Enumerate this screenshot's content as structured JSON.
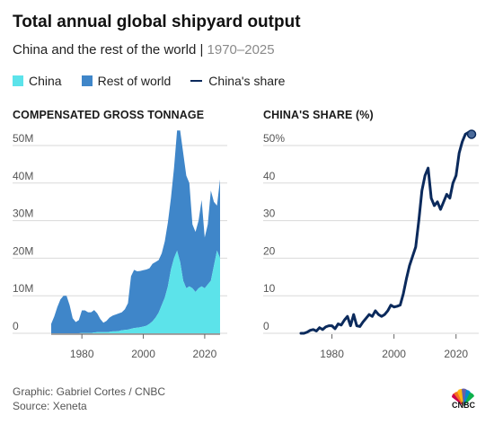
{
  "header": {
    "title": "Total annual global shipyard output",
    "subtitle_main": "China and the rest of the world | ",
    "subtitle_range": "1970–2025"
  },
  "legend": {
    "china": "China",
    "rest": "Rest of world",
    "share": "China's share"
  },
  "colors": {
    "china": "#5ce3ea",
    "rest": "#3f86c9",
    "share": "#0b2a5c",
    "grid": "#d9d9d9",
    "tick": "#555555"
  },
  "footer": {
    "credit": "Graphic: Gabriel Cortes / CNBC",
    "source": "Source: Xeneta"
  },
  "logo": {
    "text": "CNBC",
    "icon": "peacock-logo-icon"
  },
  "chart_data": [
    {
      "type": "area",
      "title": "COMPENSATED GROSS TONNAGE",
      "stacked": true,
      "y_tick_labels": [
        "0",
        "10M",
        "20M",
        "30M",
        "40M",
        "50M"
      ],
      "y_ticks": [
        0,
        10,
        20,
        30,
        40,
        50
      ],
      "x_tick_labels": [
        "1980",
        "2000",
        "2020"
      ],
      "x_ticks": [
        1980,
        2000,
        2020
      ],
      "xlim": [
        1970,
        2025
      ],
      "ylim": [
        0,
        55
      ],
      "x": [
        1970,
        1971,
        1972,
        1973,
        1974,
        1975,
        1976,
        1977,
        1978,
        1979,
        1980,
        1981,
        1982,
        1983,
        1984,
        1985,
        1986,
        1987,
        1988,
        1989,
        1990,
        1991,
        1992,
        1993,
        1994,
        1995,
        1996,
        1997,
        1998,
        1999,
        2000,
        2001,
        2002,
        2003,
        2004,
        2005,
        2006,
        2007,
        2008,
        2009,
        2010,
        2011,
        2012,
        2013,
        2014,
        2015,
        2016,
        2017,
        2018,
        2019,
        2020,
        2021,
        2022,
        2023,
        2024,
        2025
      ],
      "series": [
        {
          "name": "China",
          "values": [
            0,
            0,
            0,
            0,
            0,
            0,
            0,
            0,
            0,
            0,
            0.1,
            0.1,
            0.1,
            0.1,
            0.2,
            0.3,
            0.3,
            0.3,
            0.3,
            0.4,
            0.5,
            0.5,
            0.6,
            0.8,
            0.9,
            1.0,
            1.2,
            1.4,
            1.5,
            1.6,
            1.8,
            2.0,
            2.5,
            3.2,
            4.2,
            5.5,
            7.5,
            9.5,
            12.5,
            17,
            20,
            22,
            19,
            14,
            12,
            12.5,
            12,
            11,
            12,
            12.5,
            12,
            13,
            14,
            18,
            22,
            20
          ]
        },
        {
          "name": "Rest of world",
          "values": [
            2.5,
            4.5,
            7,
            9,
            10,
            10,
            7.5,
            4,
            3,
            3.5,
            6,
            6,
            5.5,
            5.5,
            6,
            5,
            3.5,
            2.5,
            3,
            3.8,
            4.2,
            4.5,
            4.7,
            4.8,
            5.5,
            7,
            14,
            15.5,
            15,
            15,
            15,
            15,
            14.8,
            15.3,
            14.8,
            14,
            13.8,
            15,
            17,
            19,
            24,
            32,
            35,
            34,
            30,
            27.5,
            17,
            16,
            18,
            23,
            13.5,
            16,
            24,
            17,
            12,
            21
          ]
        }
      ]
    },
    {
      "type": "line",
      "title": "CHINA'S SHARE (%)",
      "y_tick_labels": [
        "0",
        "10",
        "20",
        "30",
        "40",
        "50%"
      ],
      "y_ticks": [
        0,
        10,
        20,
        30,
        40,
        50
      ],
      "x_tick_labels": [
        "1980",
        "2000",
        "2020"
      ],
      "x_ticks": [
        1980,
        2000,
        2020
      ],
      "xlim": [
        1970,
        2025
      ],
      "ylim": [
        0,
        55
      ],
      "series": [
        {
          "name": "China's share",
          "x": [
            1970,
            1971,
            1972,
            1973,
            1974,
            1975,
            1976,
            1977,
            1978,
            1979,
            1980,
            1981,
            1982,
            1983,
            1984,
            1985,
            1986,
            1987,
            1988,
            1989,
            1990,
            1991,
            1992,
            1993,
            1994,
            1995,
            1996,
            1997,
            1998,
            1999,
            2000,
            2001,
            2002,
            2003,
            2004,
            2005,
            2006,
            2007,
            2008,
            2009,
            2010,
            2011,
            2012,
            2013,
            2014,
            2015,
            2016,
            2017,
            2018,
            2019,
            2020,
            2021,
            2022,
            2023,
            2024,
            2025
          ],
          "values": [
            0,
            0,
            0.3,
            0.8,
            1.0,
            0.6,
            1.5,
            1.0,
            1.7,
            2.0,
            2.0,
            1.2,
            2.5,
            2.2,
            3.5,
            4.5,
            2.0,
            5.0,
            2.0,
            1.8,
            3.0,
            4.0,
            5.0,
            4.5,
            6.0,
            5.0,
            4.5,
            5.0,
            6.0,
            7.5,
            7.0,
            7.2,
            7.5,
            10.5,
            14.5,
            18,
            20.5,
            23,
            30,
            38,
            42,
            44,
            36,
            34,
            35,
            33,
            35,
            37,
            36,
            40,
            42,
            48,
            51,
            53,
            53.5,
            53
          ]
        }
      ]
    }
  ]
}
